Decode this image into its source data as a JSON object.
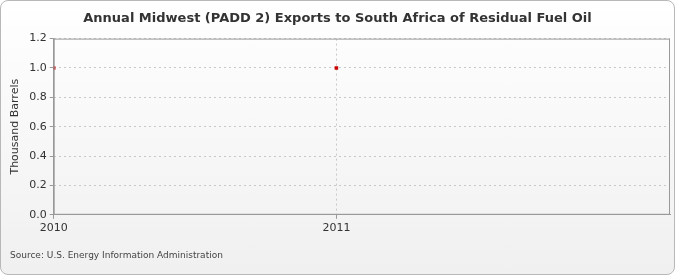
{
  "chart_data": {
    "type": "scatter",
    "title": "Annual Midwest (PADD 2) Exports to South Africa of Residual Fuel Oil",
    "y_label": "Thousand Barrels",
    "source": "Source: U.S. Energy Information Administration",
    "x": [
      2010,
      2011
    ],
    "values": [
      1.0,
      1.0
    ],
    "color": "#cc0000",
    "marker": "square",
    "xlim": [
      2010,
      2012.18
    ],
    "xticks": [
      2010,
      2011
    ],
    "ylim": [
      0,
      1.2
    ],
    "yticks": [
      {
        "value": 0,
        "label": "0.0"
      },
      {
        "value": 0.2,
        "label": "0.2"
      },
      {
        "value": 0.4,
        "label": "0.4"
      },
      {
        "value": 0.6,
        "label": "0.6"
      },
      {
        "value": 0.8,
        "label": "0.8"
      },
      {
        "value": 1.0,
        "label": "1.0"
      },
      {
        "value": 1.2,
        "label": "1.2"
      }
    ],
    "grid": true
  }
}
